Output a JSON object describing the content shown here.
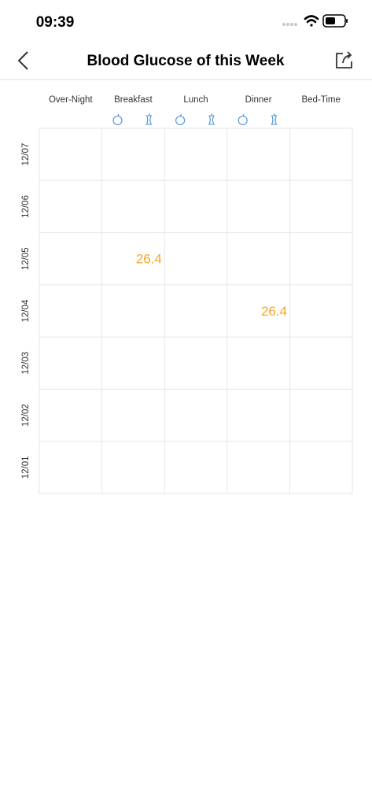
{
  "status_bar": {
    "time": "09:39"
  },
  "nav_bar": {
    "title": "Blood Glucose of this Week"
  },
  "table": {
    "columns": [
      "Over-Night",
      "Breakfast",
      "Lunch",
      "Dinner",
      "Bed-Time"
    ],
    "rows": [
      {
        "date": "12/07",
        "cells": [
          null,
          null,
          null,
          null,
          null,
          null,
          null,
          null
        ]
      },
      {
        "date": "12/06",
        "cells": [
          null,
          null,
          null,
          null,
          null,
          null,
          null,
          null
        ]
      },
      {
        "date": "12/05",
        "cells": [
          null,
          null,
          26.4,
          null,
          null,
          null,
          null,
          null
        ]
      },
      {
        "date": "12/04",
        "cells": [
          null,
          null,
          null,
          null,
          null,
          null,
          26.4,
          null
        ]
      },
      {
        "date": "12/03",
        "cells": [
          null,
          null,
          null,
          null,
          null,
          null,
          null,
          null
        ]
      },
      {
        "date": "12/02",
        "cells": [
          null,
          null,
          null,
          null,
          null,
          null,
          null,
          null
        ]
      },
      {
        "date": "12/01",
        "cells": [
          null,
          null,
          null,
          null,
          null,
          null,
          null,
          null
        ]
      }
    ]
  }
}
